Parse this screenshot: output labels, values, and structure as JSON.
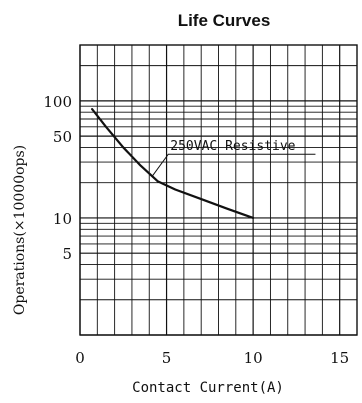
{
  "chart_data": {
    "type": "line",
    "title": "Life Curves",
    "xlabel": "Contact Current(A)",
    "ylabel": "Operations(×10000ops)",
    "xlim": [
      0,
      16
    ],
    "ylim_log": [
      1,
      300
    ],
    "x_ticks": [
      0,
      5,
      10,
      15
    ],
    "y_ticks": [
      5,
      10,
      50,
      100
    ],
    "grid": true,
    "series": [
      {
        "name": "250VAC Resistive",
        "x": [
          0.7,
          1.5,
          2.5,
          3.5,
          4.5,
          5.5,
          7,
          8.5,
          10
        ],
        "y": [
          85,
          60,
          40,
          28,
          20.5,
          17.5,
          14.5,
          12,
          10
        ],
        "color": "#111111"
      }
    ],
    "annotation": {
      "text": "250VAC Resistive"
    }
  }
}
